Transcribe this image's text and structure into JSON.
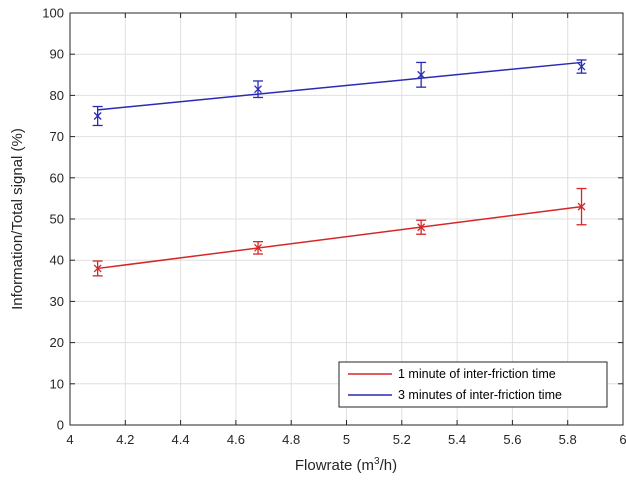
{
  "chart_data": {
    "type": "line",
    "xlabel": {
      "pre": "Flowrate (m",
      "sup": "3",
      "post": "/h)"
    },
    "ylabel": "Information/Total signal (%)",
    "xlim": [
      4,
      6
    ],
    "ylim": [
      0,
      100
    ],
    "xticks": [
      "4",
      "4.2",
      "4.4",
      "4.6",
      "4.8",
      "5",
      "5.2",
      "5.4",
      "5.6",
      "5.8",
      "6"
    ],
    "yticks": [
      "0",
      "10",
      "20",
      "30",
      "40",
      "50",
      "60",
      "70",
      "80",
      "90",
      "100"
    ],
    "grid": true,
    "legend_position": "bottom-right",
    "series": [
      {
        "name": "1 minute of inter-friction time",
        "color": "#d62728",
        "points": [
          {
            "x": 4.1,
            "y": 38,
            "err": 1.8
          },
          {
            "x": 4.68,
            "y": 43,
            "err": 1.5
          },
          {
            "x": 5.27,
            "y": 48,
            "err": 1.7
          },
          {
            "x": 5.85,
            "y": 53,
            "err": 4.4
          }
        ],
        "fit": [
          [
            4.1,
            38
          ],
          [
            5.85,
            53
          ]
        ]
      },
      {
        "name": "3 minutes of inter-friction time",
        "color": "#2a2ab5",
        "points": [
          {
            "x": 4.1,
            "y": 75,
            "err": 2.3
          },
          {
            "x": 4.68,
            "y": 81.5,
            "err": 2.0
          },
          {
            "x": 5.27,
            "y": 85,
            "err": 3.0
          },
          {
            "x": 5.85,
            "y": 87,
            "err": 1.6
          }
        ],
        "fit": [
          [
            4.1,
            76.5
          ],
          [
            5.85,
            88
          ]
        ]
      }
    ]
  }
}
